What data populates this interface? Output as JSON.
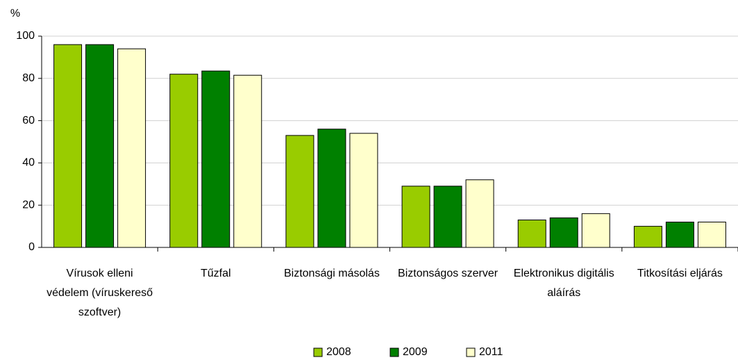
{
  "chart_data": {
    "type": "bar",
    "y_label": "%",
    "categories": [
      "Vírusok elleni védelem (víruskereső szoftver)",
      "Tűzfal",
      "Biztonsági másolás",
      "Biztonságos szerver",
      "Elektronikus digitális aláírás",
      "Titkosítási eljárás"
    ],
    "series": [
      {
        "name": "2008",
        "color": "#99cc00",
        "values": [
          96,
          82,
          53,
          29,
          13,
          10
        ]
      },
      {
        "name": "2009",
        "color": "#008000",
        "values": [
          96,
          83.5,
          56,
          29,
          14,
          12
        ]
      },
      {
        "name": "2011",
        "color": "#ffffcc",
        "values": [
          94,
          81.5,
          54,
          32,
          16,
          12
        ]
      }
    ],
    "ylim": [
      0,
      100
    ],
    "yticks": [
      0,
      20,
      40,
      60,
      80,
      100
    ],
    "grid": true,
    "legend": "bottom"
  }
}
